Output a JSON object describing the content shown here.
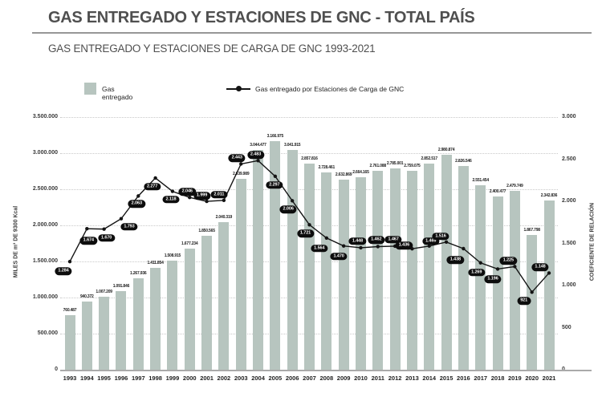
{
  "header": {
    "title": "GAS ENTREGADO Y ESTACIONES DE GNC - TOTAL PAÍS",
    "subtitle": "GAS ENTREGADO Y ESTACIONES DE CARGA DE GNC 1993-2021"
  },
  "colors": {
    "bar": "#b7c5bf",
    "line": "#141414",
    "pill_bg": "#0d0d0d",
    "pill_text": "#ffffff"
  },
  "chart_data": {
    "type": "bar+line",
    "title": "GAS ENTREGADO Y ESTACIONES DE CARGA DE GNC 1993-2021",
    "grid": "dotted-horizontal",
    "legend_position": "top",
    "categories": [
      "1993",
      "1994",
      "1995",
      "1996",
      "1997",
      "1998",
      "1999",
      "2000",
      "2001",
      "2002",
      "2003",
      "2004",
      "2005",
      "2006",
      "2007",
      "2008",
      "2009",
      "2010",
      "2011",
      "2012",
      "2013",
      "2014",
      "2015",
      "2016",
      "2017",
      "2018",
      "2019",
      "2020",
      "2021"
    ],
    "series": [
      {
        "name": "Gas entregado",
        "type": "bar",
        "axis": "left",
        "values": [
          760487,
          940372,
          1007209,
          1091846,
          1267936,
          1411854,
          1508915,
          1677234,
          1850565,
          2040319,
          2639989,
          3044477,
          3166975,
          3041915,
          2857816,
          2728461,
          2632869,
          2664165,
          2761088,
          2785001,
          2759075,
          2852517,
          2980874,
          2826546,
          2551454,
          2400477,
          2479749,
          1867798,
          2342836
        ]
      },
      {
        "name": "Gas entregado por Estaciones de Carga de GNC",
        "type": "line",
        "axis": "right",
        "values": [
          1284,
          1674,
          1670,
          1793,
          2063,
          2277,
          2118,
          2046,
          1999,
          2011,
          2443,
          2483,
          2297,
          2006,
          1721,
          1564,
          1470,
          1448,
          1462,
          1467,
          1436,
          1469,
          1516,
          1438,
          1269,
          1196,
          1225,
          921,
          1148
        ]
      }
    ],
    "left_axis": {
      "title": "MILES DE m³ DE 9300 Kcal",
      "max": 3500000,
      "tick_values": [
        0,
        500000,
        1000000,
        1500000,
        2000000,
        2500000,
        3000000,
        3500000
      ]
    },
    "right_axis": {
      "title": "COEFICIENTE DE RELACIÓN",
      "max": 3000,
      "tick_values": [
        0,
        500,
        1000,
        1500,
        2000,
        2500,
        3000
      ]
    }
  }
}
